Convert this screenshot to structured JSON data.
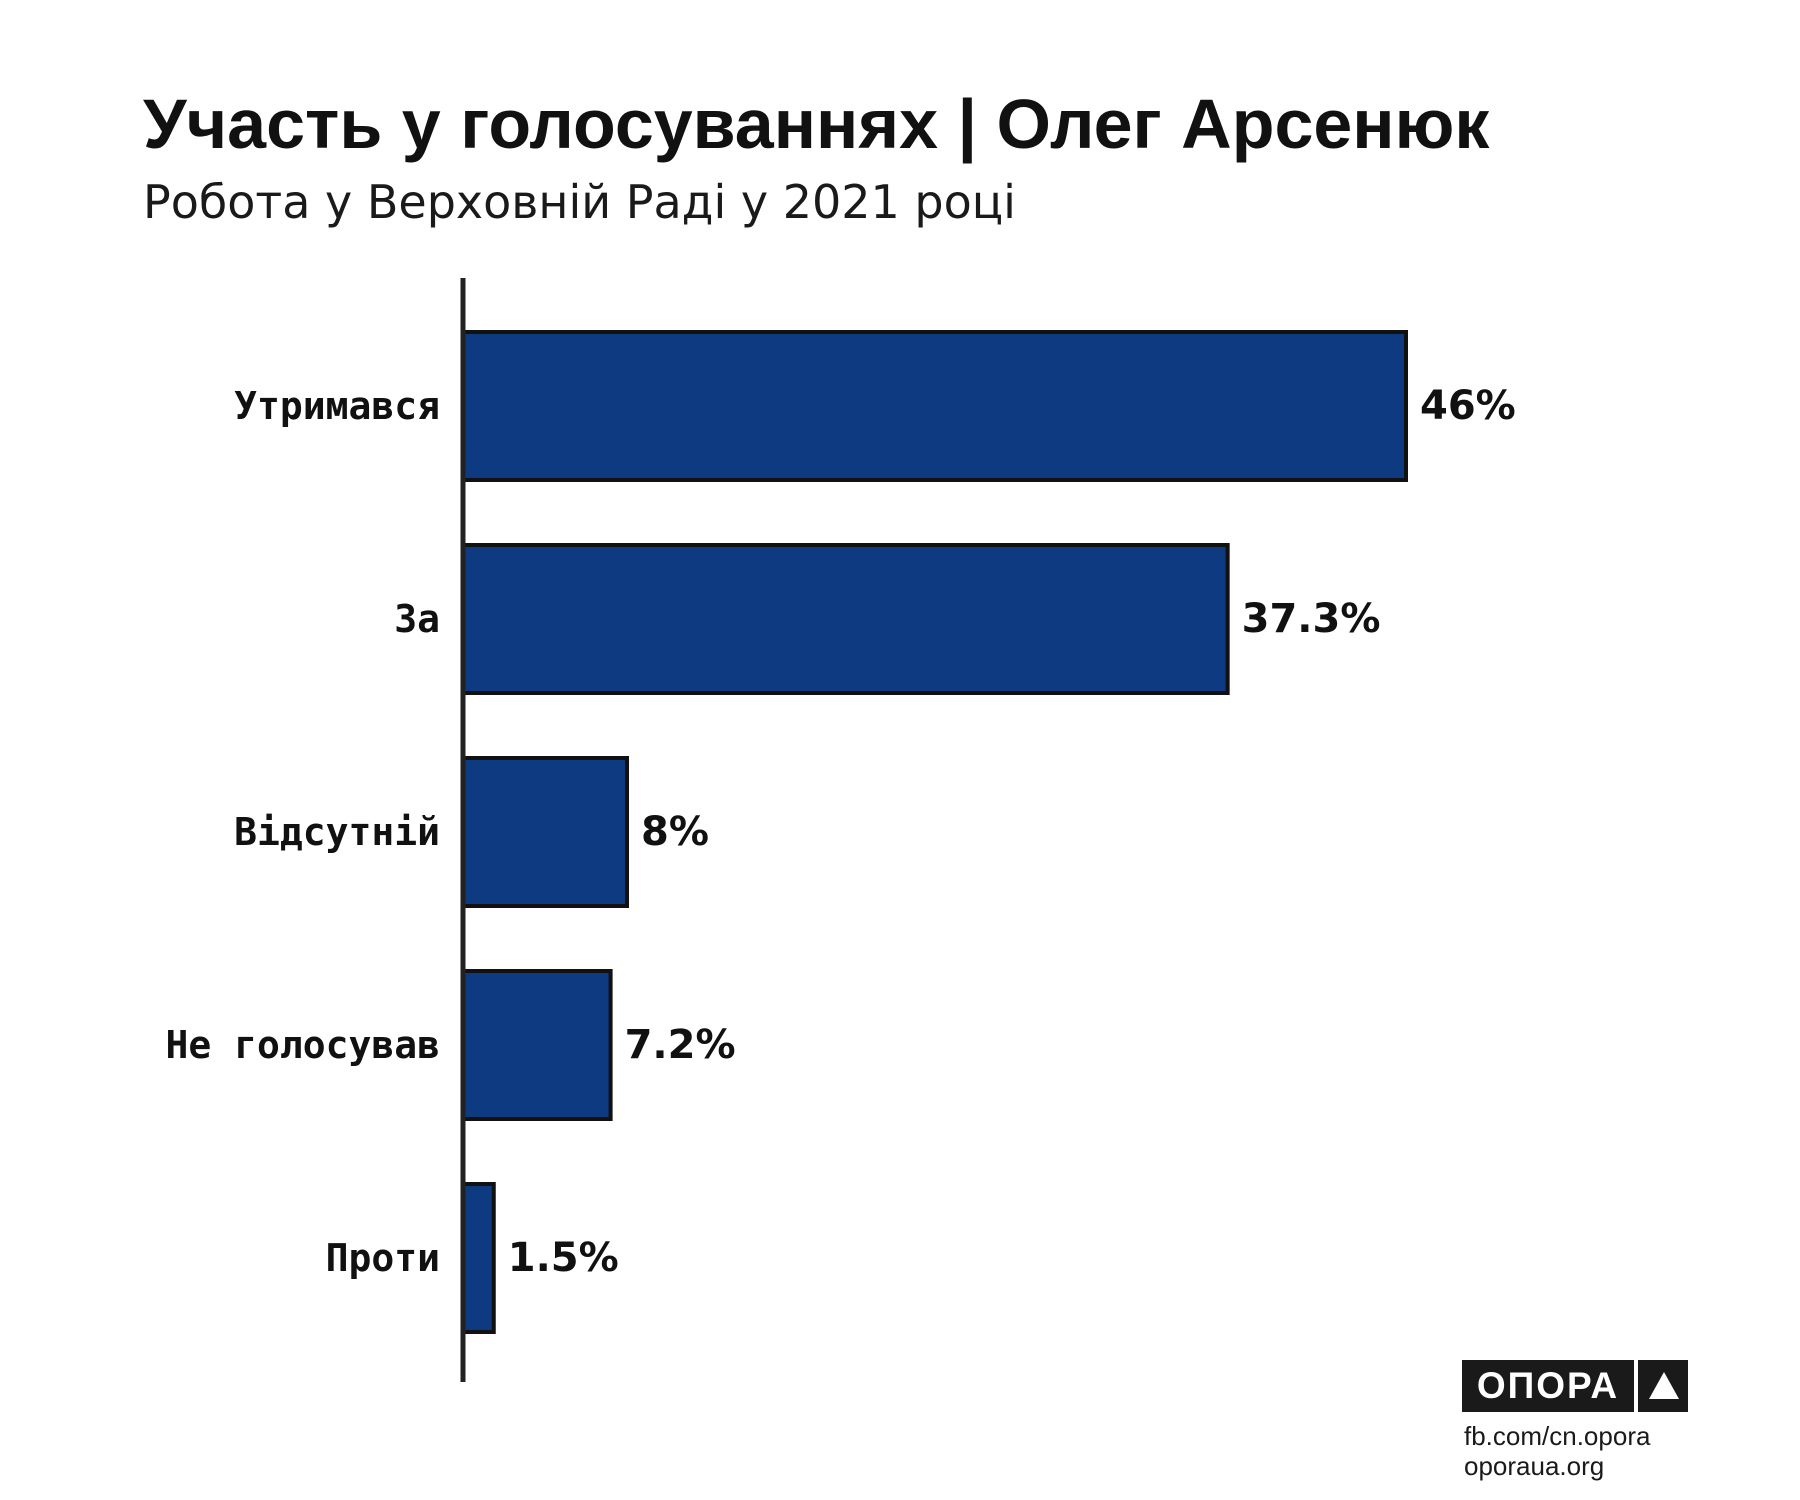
{
  "header": {
    "title": "Участь у голосуваннях | Олег Арсенюк",
    "subtitle": "Робота у Верховній Раді у 2021 році"
  },
  "chart_data": {
    "type": "bar",
    "orientation": "horizontal",
    "title": "Участь у голосуваннях | Олег Арсенюк",
    "subtitle": "Робота у Верховній Раді у 2021 році",
    "categories": [
      "Утримався",
      "За",
      "Відсутній",
      "Не голосував",
      "Проти"
    ],
    "values": [
      46,
      37.3,
      8,
      7.2,
      1.5
    ],
    "value_labels": [
      "46%",
      "37.3%",
      "8%",
      "7.2%",
      "1.5%"
    ],
    "unit": "%",
    "xlim": [
      0,
      50
    ],
    "grid": false,
    "legend": "none",
    "bar_color": "#0d3a80",
    "bar_stroke": "#111111"
  },
  "branding": {
    "logo_text": "ОПОРА",
    "links": [
      "fb.com/cn.opora",
      "oporaua.org"
    ]
  },
  "colors": {
    "bar": "#0d3a80",
    "text": "#111111",
    "axis": "#222222"
  }
}
